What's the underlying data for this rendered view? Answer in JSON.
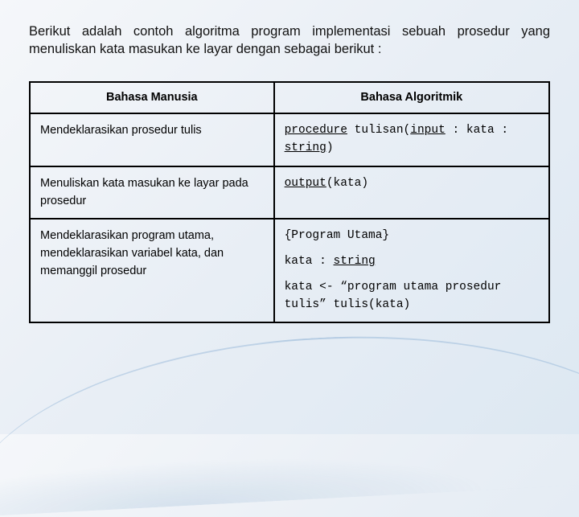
{
  "intro": "Berikut adalah contoh algoritma program implementasi sebuah prosedur yang menuliskan kata masukan ke layar dengan sebagai berikut :",
  "table": {
    "headers": {
      "left": "Bahasa Manusia",
      "right": "Bahasa Algoritmik"
    },
    "rows": [
      {
        "left": "Mendeklarasikan prosedur tulis",
        "right_parts": {
          "p1": "procedure",
          "p2": " tulisan(",
          "p3": "input",
          "p4": " : kata : ",
          "p5": "string",
          "p6": ")"
        }
      },
      {
        "left": "Menuliskan kata masukan ke layar pada prosedur",
        "right_parts": {
          "p1": "output",
          "p2": "(kata)"
        }
      },
      {
        "left": "Mendeklarasikan program utama, mendeklarasikan variabel kata, dan memanggil prosedur",
        "right_lines": {
          "l1": "{Program Utama}",
          "l2a": "kata : ",
          "l2b": "string",
          "l3": "kata <- “program utama prosedur tulis” tulis(kata)"
        }
      }
    ]
  },
  "style": {
    "body_font_size": 16.5,
    "cell_font_size": 14.5,
    "border_color": "#000000",
    "text_color": "#111111",
    "mono_font": "Courier New"
  }
}
